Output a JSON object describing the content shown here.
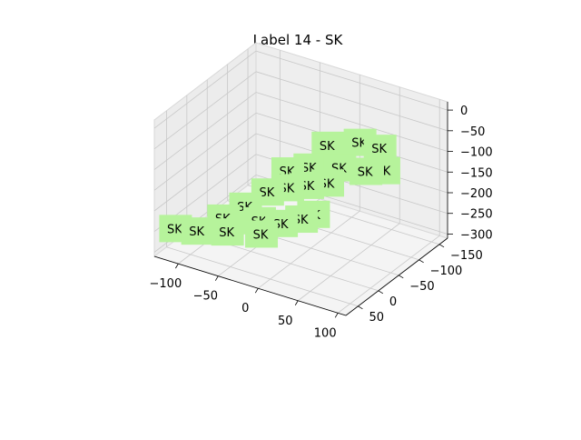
{
  "chart_data": {
    "type": "scatter",
    "title": "Label 14 - SK",
    "xlabel": "",
    "ylabel": "",
    "zlabel": "",
    "x_ticks": [
      "−100",
      "−50",
      "0",
      "50",
      "100"
    ],
    "y_ticks": [
      "−150",
      "−100",
      "−50",
      "0",
      "50"
    ],
    "z_ticks": [
      "0",
      "−50",
      "−100",
      "−150",
      "−200",
      "−250",
      "−300"
    ],
    "xlim": [
      -130,
      110
    ],
    "ylim": [
      -170,
      80
    ],
    "zlim": [
      -310,
      20
    ],
    "grid": true,
    "marker_color": "#b6f39b",
    "point_label": "SK",
    "points": [
      {
        "x": -130,
        "y": 30,
        "z": -280,
        "label": "SK"
      },
      {
        "x": -105,
        "y": 25,
        "z": -275,
        "label": "SK"
      },
      {
        "x": -70,
        "y": 20,
        "z": -260,
        "label": "SK"
      },
      {
        "x": -80,
        "y": 10,
        "z": -240,
        "label": "SK"
      },
      {
        "x": -30,
        "y": 15,
        "z": -245,
        "label": "SK"
      },
      {
        "x": -40,
        "y": 0,
        "z": -230,
        "label": "SK"
      },
      {
        "x": -10,
        "y": 5,
        "z": -215,
        "label": "SK"
      },
      {
        "x": 10,
        "y": -5,
        "z": -200,
        "label": "SK"
      },
      {
        "x": 20,
        "y": -15,
        "z": -190,
        "label": "SK"
      },
      {
        "x": -55,
        "y": 5,
        "z": -200,
        "label": "SK"
      },
      {
        "x": -35,
        "y": -10,
        "z": -165,
        "label": "SK"
      },
      {
        "x": -15,
        "y": -20,
        "z": -150,
        "label": "SK"
      },
      {
        "x": 5,
        "y": -30,
        "z": -140,
        "label": "SK"
      },
      {
        "x": 25,
        "y": -40,
        "z": -130,
        "label": "SK"
      },
      {
        "x": -20,
        "y": -30,
        "z": -120,
        "label": "SK"
      },
      {
        "x": 0,
        "y": -45,
        "z": -110,
        "label": "SK"
      },
      {
        "x": 30,
        "y": -60,
        "z": -105,
        "label": "SK"
      },
      {
        "x": 55,
        "y": -75,
        "z": -110,
        "label": "SK"
      },
      {
        "x": 75,
        "y": -80,
        "z": -100,
        "label": "SK"
      },
      {
        "x": 60,
        "y": -100,
        "z": -70,
        "label": "SK"
      },
      {
        "x": 40,
        "y": -90,
        "z": -60,
        "label": "SK"
      },
      {
        "x": 10,
        "y": -70,
        "z": -70,
        "label": "SK"
      }
    ]
  }
}
